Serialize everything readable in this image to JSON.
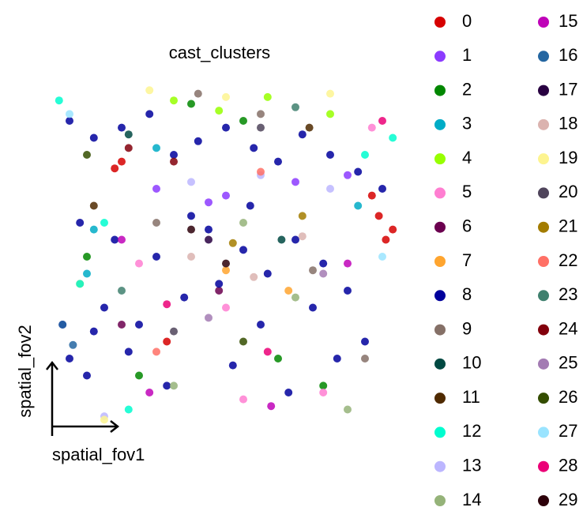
{
  "chart_data": {
    "type": "scatter",
    "title": "cast_clusters",
    "x_label": "spatial_fov1",
    "y_label": "spatial_fov2",
    "xlim": [
      0,
      100
    ],
    "ylim": [
      0,
      100
    ],
    "series": [
      {
        "name": "0",
        "color": "#d60000",
        "x": [
          94,
          96,
          92,
          18,
          20,
          33,
          98
        ],
        "y": [
          62,
          55,
          68,
          76,
          78,
          25,
          58
        ]
      },
      {
        "name": "1",
        "color": "#8c3bff",
        "x": [
          30,
          50,
          70,
          85,
          45
        ],
        "y": [
          70,
          68,
          72,
          74,
          66
        ]
      },
      {
        "name": "2",
        "color": "#018700",
        "x": [
          40,
          55,
          25,
          65,
          10,
          78
        ],
        "y": [
          95,
          90,
          15,
          20,
          50,
          12
        ]
      },
      {
        "name": "3",
        "color": "#00acc6",
        "x": [
          12,
          30,
          88,
          10
        ],
        "y": [
          58,
          82,
          65,
          45
        ]
      },
      {
        "name": "4",
        "color": "#97ff00",
        "x": [
          35,
          48,
          62,
          80
        ],
        "y": [
          96,
          93,
          97,
          92
        ]
      },
      {
        "name": "5",
        "color": "#ff7ed1",
        "x": [
          25,
          50,
          78,
          55,
          92
        ],
        "y": [
          48,
          35,
          10,
          8,
          88
        ]
      },
      {
        "name": "6",
        "color": "#6b004f",
        "x": [
          48,
          20
        ],
        "y": [
          40,
          30
        ]
      },
      {
        "name": "7",
        "color": "#ffa52f",
        "x": [
          8,
          50,
          68
        ],
        "y": [
          42,
          46,
          40
        ]
      },
      {
        "name": "8",
        "color": "#00009c",
        "x": [
          5,
          12,
          20,
          28,
          35,
          42,
          50,
          58,
          65,
          72,
          80,
          88,
          95,
          8,
          18,
          30,
          45,
          55,
          62,
          70,
          78,
          85,
          15,
          25,
          38,
          48,
          60,
          75,
          90,
          5,
          10,
          22,
          33,
          52,
          68,
          82,
          40,
          57,
          3,
          12
        ],
        "y": [
          90,
          85,
          88,
          92,
          80,
          84,
          88,
          82,
          78,
          86,
          80,
          75,
          70,
          60,
          55,
          50,
          58,
          52,
          45,
          55,
          48,
          40,
          35,
          30,
          38,
          42,
          30,
          35,
          25,
          20,
          15,
          22,
          12,
          18,
          10,
          20,
          62,
          65,
          30,
          28
        ]
      },
      {
        "name": "9",
        "color": "#857067",
        "x": [
          42,
          60,
          75,
          30,
          90
        ],
        "y": [
          98,
          92,
          46,
          60,
          20
        ]
      },
      {
        "name": "10",
        "color": "#004942",
        "x": [
          22,
          66
        ],
        "y": [
          86,
          55
        ]
      },
      {
        "name": "11",
        "color": "#4f2a00",
        "x": [
          12,
          74
        ],
        "y": [
          65,
          88
        ]
      },
      {
        "name": "12",
        "color": "#00fdcf",
        "x": [
          2,
          15,
          22,
          90,
          98,
          8
        ],
        "y": [
          96,
          60,
          5,
          80,
          85,
          42
        ]
      },
      {
        "name": "13",
        "color": "#bcb6ff",
        "x": [
          40,
          60,
          80,
          15
        ],
        "y": [
          72,
          74,
          70,
          3
        ]
      },
      {
        "name": "14",
        "color": "#95b379",
        "x": [
          55,
          70,
          85,
          35
        ],
        "y": [
          60,
          38,
          5,
          12
        ]
      },
      {
        "name": "15",
        "color": "#bf03b8",
        "x": [
          28,
          63,
          85,
          20
        ],
        "y": [
          10,
          6,
          48,
          55
        ]
      },
      {
        "name": "16",
        "color": "#2466a1",
        "x": [
          6,
          3
        ],
        "y": [
          24,
          30
        ]
      },
      {
        "name": "17",
        "color": "#280041",
        "x": [
          45
        ],
        "y": [
          55
        ]
      },
      {
        "name": "18",
        "color": "#dbb3af",
        "x": [
          40,
          58,
          72
        ],
        "y": [
          50,
          44,
          56
        ]
      },
      {
        "name": "19",
        "color": "#fdf490",
        "x": [
          28,
          50,
          80,
          15
        ],
        "y": [
          99,
          97,
          98,
          2
        ]
      },
      {
        "name": "20",
        "color": "#4f445b",
        "x": [
          60,
          35
        ],
        "y": [
          88,
          28
        ]
      },
      {
        "name": "21",
        "color": "#a37c00",
        "x": [
          52,
          72
        ],
        "y": [
          54,
          62
        ]
      },
      {
        "name": "22",
        "color": "#ff7066",
        "x": [
          60,
          30
        ],
        "y": [
          75,
          22
        ]
      },
      {
        "name": "23",
        "color": "#3f806e",
        "x": [
          70,
          20
        ],
        "y": [
          94,
          40
        ]
      },
      {
        "name": "24",
        "color": "#82000c",
        "x": [
          35,
          22
        ],
        "y": [
          78,
          82
        ]
      },
      {
        "name": "25",
        "color": "#a37bb3",
        "x": [
          78,
          45
        ],
        "y": [
          45,
          32
        ]
      },
      {
        "name": "26",
        "color": "#344d00",
        "x": [
          10,
          55
        ],
        "y": [
          80,
          25
        ]
      },
      {
        "name": "27",
        "color": "#9ae4ff",
        "x": [
          5,
          95
        ],
        "y": [
          92,
          50
        ]
      },
      {
        "name": "28",
        "color": "#eb0077",
        "x": [
          33,
          62,
          95
        ],
        "y": [
          36,
          22,
          90
        ]
      },
      {
        "name": "29",
        "color": "#2d000a",
        "x": [
          50,
          40
        ],
        "y": [
          48,
          58
        ]
      }
    ]
  }
}
